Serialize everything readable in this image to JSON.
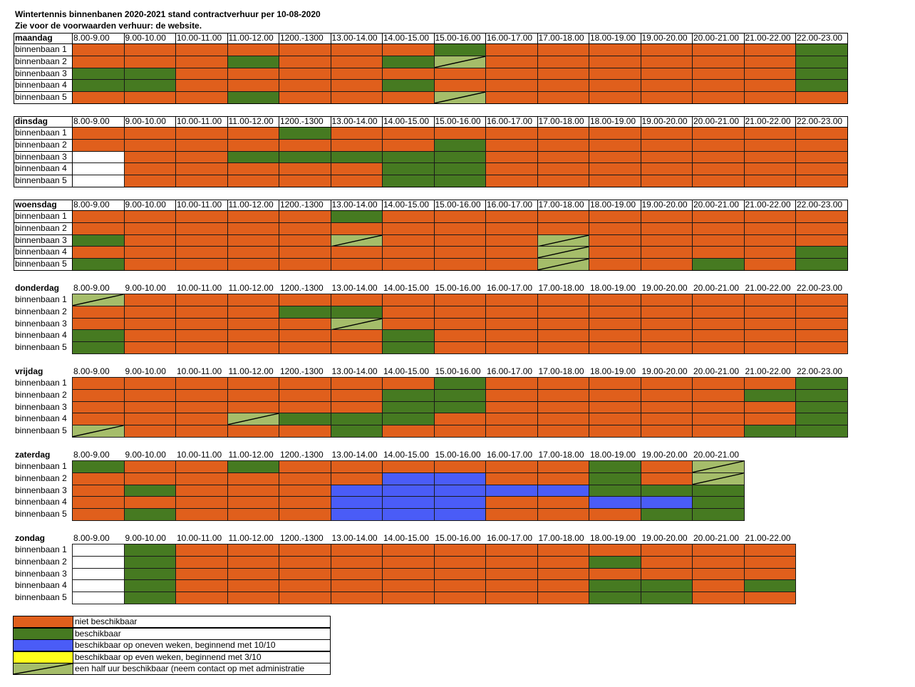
{
  "header": {
    "title": "Wintertennis binnenbanen 2020-2021 stand contractverhuur per 10-08-2020",
    "subtitle": "Zie voor de voorwaarden verhuur: de website."
  },
  "colors": {
    "o": "#e05f1c",
    "g": "#467a21",
    "b": "#4a5cf7",
    "y": "#ffff1a",
    "h": "#a5bd6a",
    "w": "#ffffff"
  },
  "days": [
    {
      "name": "maandag",
      "slots": [
        "8.00-9.00",
        "9.00-10.00",
        "10.00-11.00",
        "11.00-12.00",
        "1200.-1300",
        "13.00-14.00",
        "14.00-15.00",
        "15.00-16.00",
        "16.00-17.00",
        "17.00-18.00",
        "18.00-19.00",
        "19.00-20.00",
        "20.00-21.00",
        "21.00-22.00",
        "22.00-23.00"
      ],
      "rows": [
        {
          "label": "binnenbaan 1",
          "cells": [
            "o",
            "o",
            "o",
            "o",
            "o",
            "o",
            "o",
            "g",
            "o",
            "o",
            "o",
            "o",
            "o",
            "o",
            "g"
          ]
        },
        {
          "label": "binnenbaan 2",
          "cells": [
            "o",
            "o",
            "o",
            "g",
            "o",
            "o",
            "g",
            "h",
            "o",
            "o",
            "o",
            "o",
            "o",
            "o",
            "g"
          ]
        },
        {
          "label": "binnenbaan 3",
          "cells": [
            "g",
            "g",
            "o",
            "o",
            "o",
            "o",
            "o",
            "o",
            "o",
            "o",
            "o",
            "o",
            "o",
            "o",
            "g"
          ]
        },
        {
          "label": "binnenbaan 4",
          "cells": [
            "g",
            "g",
            "o",
            "o",
            "o",
            "o",
            "g",
            "o",
            "o",
            "o",
            "o",
            "o",
            "o",
            "o",
            "g"
          ]
        },
        {
          "label": "binnenbaan 5",
          "cells": [
            "o",
            "o",
            "o",
            "g",
            "o",
            "o",
            "o",
            "h",
            "o",
            "o",
            "o",
            "o",
            "o",
            "o",
            "o"
          ]
        }
      ]
    },
    {
      "name": "dinsdag",
      "slots": [
        "8.00-9.00",
        "9.00-10.00",
        "10.00-11.00",
        "11.00-12.00",
        "1200.-1300",
        "13.00-14.00",
        "14.00-15.00",
        "15.00-16.00",
        "16.00-17.00",
        "17.00-18.00",
        "18.00-19.00",
        "19.00-20.00",
        "20.00-21.00",
        "21.00-22.00",
        "22.00-23.00"
      ],
      "rows": [
        {
          "label": "binnenbaan 1",
          "cells": [
            "o",
            "o",
            "o",
            "o",
            "g",
            "o",
            "o",
            "o",
            "o",
            "o",
            "o",
            "o",
            "o",
            "o",
            "o"
          ]
        },
        {
          "label": "binnenbaan 2",
          "cells": [
            "o",
            "o",
            "o",
            "o",
            "o",
            "o",
            "o",
            "g",
            "o",
            "o",
            "o",
            "o",
            "o",
            "o",
            "o"
          ]
        },
        {
          "label": "binnenbaan 3",
          "cells": [
            "w",
            "o",
            "o",
            "g",
            "g",
            "g",
            "g",
            "g",
            "o",
            "o",
            "o",
            "o",
            "o",
            "o",
            "o"
          ]
        },
        {
          "label": "binnenbaan 4",
          "cells": [
            "w",
            "o",
            "o",
            "o",
            "o",
            "o",
            "g",
            "g",
            "o",
            "o",
            "o",
            "o",
            "o",
            "o",
            "o"
          ]
        },
        {
          "label": "binnenbaan 5",
          "cells": [
            "w",
            "o",
            "o",
            "o",
            "o",
            "o",
            "g",
            "g",
            "o",
            "o",
            "o",
            "o",
            "o",
            "o",
            "o"
          ]
        }
      ]
    },
    {
      "name": "woensdag",
      "slots": [
        "8.00-9.00",
        "9.00-10.00",
        "10.00-11.00",
        "11.00-12.00",
        "1200.-1300",
        "13.00-14.00",
        "14.00-15.00",
        "15.00-16.00",
        "16.00-17.00",
        "17.00-18.00",
        "18.00-19.00",
        "19.00-20.00",
        "20.00-21.00",
        "21.00-22.00",
        "22.00-23.00"
      ],
      "rows": [
        {
          "label": "binnenbaan 1",
          "cells": [
            "o",
            "o",
            "o",
            "o",
            "o",
            "g",
            "o",
            "o",
            "o",
            "o",
            "o",
            "o",
            "o",
            "o",
            "o"
          ]
        },
        {
          "label": "binnenbaan 2",
          "cells": [
            "o",
            "o",
            "o",
            "o",
            "o",
            "o",
            "o",
            "o",
            "o",
            "o",
            "o",
            "o",
            "o",
            "o",
            "o"
          ]
        },
        {
          "label": "binnenbaan 3",
          "cells": [
            "g",
            "o",
            "o",
            "o",
            "o",
            "h",
            "o",
            "o",
            "o",
            "h",
            "o",
            "o",
            "o",
            "o",
            "o"
          ]
        },
        {
          "label": "binnenbaan 4",
          "cells": [
            "o",
            "o",
            "o",
            "o",
            "o",
            "o",
            "o",
            "o",
            "o",
            "h",
            "o",
            "o",
            "o",
            "o",
            "g"
          ]
        },
        {
          "label": "binnenbaan 5",
          "cells": [
            "g",
            "o",
            "o",
            "o",
            "o",
            "o",
            "o",
            "o",
            "o",
            "h",
            "o",
            "o",
            "g",
            "o",
            "g"
          ]
        }
      ]
    },
    {
      "name": "donderdag",
      "slots": [
        "8.00-9.00",
        "9.00-10.00",
        "10.00-11.00",
        "11.00-12.00",
        "1200.-1300",
        "13.00-14.00",
        "14.00-15.00",
        "15.00-16.00",
        "16.00-17.00",
        "17.00-18.00",
        "18.00-19.00",
        "19.00-20.00",
        "20.00-21.00",
        "21.00-22.00",
        "22.00-23.00"
      ],
      "rows": [
        {
          "label": "binnenbaan 1",
          "cells": [
            "h",
            "o",
            "o",
            "o",
            "o",
            "o",
            "o",
            "o",
            "o",
            "o",
            "o",
            "o",
            "o",
            "o",
            "o"
          ]
        },
        {
          "label": "binnenbaan 2",
          "cells": [
            "o",
            "o",
            "o",
            "o",
            "g",
            "g",
            "o",
            "o",
            "o",
            "o",
            "o",
            "o",
            "o",
            "o",
            "o"
          ]
        },
        {
          "label": "binnenbaan 3",
          "cells": [
            "o",
            "o",
            "o",
            "o",
            "o",
            "h",
            "o",
            "o",
            "o",
            "o",
            "o",
            "o",
            "o",
            "o",
            "o"
          ]
        },
        {
          "label": "binnenbaan 4",
          "cells": [
            "g",
            "o",
            "o",
            "o",
            "o",
            "o",
            "g",
            "o",
            "o",
            "o",
            "o",
            "o",
            "o",
            "o",
            "o"
          ]
        },
        {
          "label": "binnenbaan 5",
          "cells": [
            "g",
            "o",
            "o",
            "o",
            "o",
            "o",
            "g",
            "o",
            "o",
            "o",
            "o",
            "o",
            "o",
            "o",
            "o"
          ]
        }
      ]
    },
    {
      "name": "vrijdag",
      "slots": [
        "8.00-9.00",
        "9.00-10.00",
        "10.00-11.00",
        "11.00-12.00",
        "1200.-1300",
        "13.00-14.00",
        "14.00-15.00",
        "15.00-16.00",
        "16.00-17.00",
        "17.00-18.00",
        "18.00-19.00",
        "19.00-20.00",
        "20.00-21.00",
        "21.00-22.00",
        "22.00-23.00"
      ],
      "rows": [
        {
          "label": "binnenbaan 1",
          "cells": [
            "o",
            "o",
            "o",
            "o",
            "o",
            "o",
            "o",
            "g",
            "o",
            "o",
            "o",
            "o",
            "o",
            "o",
            "g"
          ]
        },
        {
          "label": "binnenbaan 2",
          "cells": [
            "o",
            "o",
            "o",
            "o",
            "o",
            "o",
            "g",
            "g",
            "o",
            "o",
            "o",
            "o",
            "o",
            "g",
            "g"
          ]
        },
        {
          "label": "binnenbaan 3",
          "cells": [
            "o",
            "o",
            "o",
            "o",
            "o",
            "o",
            "g",
            "g",
            "o",
            "o",
            "o",
            "o",
            "o",
            "o",
            "g"
          ]
        },
        {
          "label": "binnenbaan 4",
          "cells": [
            "o",
            "o",
            "o",
            "h",
            "g",
            "g",
            "g",
            "o",
            "o",
            "o",
            "o",
            "o",
            "o",
            "o",
            "g"
          ]
        },
        {
          "label": "binnenbaan 5",
          "cells": [
            "h",
            "o",
            "o",
            "o",
            "o",
            "g",
            "o",
            "o",
            "o",
            "o",
            "o",
            "o",
            "o",
            "g",
            "g"
          ]
        }
      ]
    },
    {
      "name": "zaterdag",
      "slots": [
        "8.00-9.00",
        "9.00-10.00",
        "10.00-11.00",
        "11.00-12.00",
        "1200.-1300",
        "13.00-14.00",
        "14.00-15.00",
        "15.00-16.00",
        "16.00-17.00",
        "17.00-18.00",
        "18.00-19.00",
        "19.00-20.00",
        "20.00-21.00"
      ],
      "rows": [
        {
          "label": "binnenbaan 1",
          "cells": [
            "g",
            "o",
            "o",
            "g",
            "o",
            "o",
            "o",
            "o",
            "o",
            "o",
            "g",
            "o",
            "h"
          ]
        },
        {
          "label": "binnenbaan 2",
          "cells": [
            "o",
            "o",
            "o",
            "o",
            "o",
            "o",
            "b",
            "b",
            "o",
            "o",
            "g",
            "o",
            "h"
          ]
        },
        {
          "label": "binnenbaan 3",
          "cells": [
            "o",
            "g",
            "o",
            "o",
            "o",
            "b",
            "b",
            "b",
            "b",
            "b",
            "g",
            "g",
            "g"
          ]
        },
        {
          "label": "binnenbaan 4",
          "cells": [
            "o",
            "o",
            "o",
            "o",
            "o",
            "b",
            "b",
            "b",
            "o",
            "o",
            "b",
            "b",
            "g"
          ]
        },
        {
          "label": "binnenbaan 5",
          "cells": [
            "o",
            "g",
            "o",
            "o",
            "o",
            "b",
            "b",
            "b",
            "o",
            "o",
            "o",
            "g",
            "g"
          ]
        }
      ]
    },
    {
      "name": "zondag",
      "slots": [
        "8.00-9.00",
        "9.00-10.00",
        "10.00-11.00",
        "11.00-12.00",
        "1200.-1300",
        "13.00-14.00",
        "14.00-15.00",
        "15.00-16.00",
        "16.00-17.00",
        "17.00-18.00",
        "18.00-19.00",
        "19.00-20.00",
        "20.00-21.00",
        "21.00-22.00"
      ],
      "rows": [
        {
          "label": "binnenbaan 1",
          "cells": [
            "w",
            "g",
            "o",
            "o",
            "o",
            "o",
            "o",
            "o",
            "o",
            "o",
            "o",
            "o",
            "o",
            "o"
          ]
        },
        {
          "label": "binnenbaan 2",
          "cells": [
            "w",
            "g",
            "o",
            "o",
            "o",
            "o",
            "o",
            "o",
            "o",
            "o",
            "g",
            "o",
            "o",
            "o"
          ]
        },
        {
          "label": "binnenbaan 3",
          "cells": [
            "w",
            "g",
            "o",
            "o",
            "o",
            "o",
            "o",
            "o",
            "o",
            "o",
            "o",
            "o",
            "o",
            "o"
          ]
        },
        {
          "label": "binnenbaan 4",
          "cells": [
            "w",
            "g",
            "o",
            "o",
            "o",
            "o",
            "o",
            "o",
            "o",
            "o",
            "g",
            "g",
            "o",
            "g"
          ]
        },
        {
          "label": "binnenbaan 5",
          "cells": [
            "w",
            "g",
            "o",
            "o",
            "o",
            "o",
            "o",
            "o",
            "o",
            "o",
            "g",
            "g",
            "o",
            "o"
          ]
        }
      ]
    }
  ],
  "legend": [
    {
      "code": "o",
      "text": "niet beschikbaar"
    },
    {
      "code": "g",
      "text": "beschikbaar"
    },
    {
      "code": "b",
      "text": "beschikbaar op oneven weken, beginnend met 10/10"
    },
    {
      "code": "y",
      "text": "beschikbaar op even weken, beginnend met 3/10"
    },
    {
      "code": "h",
      "text": "een half uur beschikbaar (neem contact op met administratie"
    }
  ]
}
